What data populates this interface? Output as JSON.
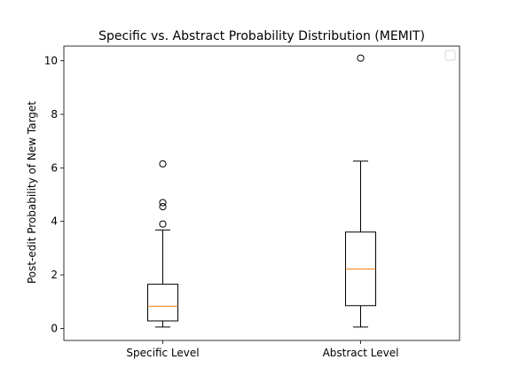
{
  "chart_data": {
    "type": "box",
    "title": "Specific vs. Abstract Probability Distribution (MEMIT)",
    "xlabel": "",
    "ylabel": "Post-edit Probability of New Target",
    "categories": [
      "Specific Level",
      "Abstract Level"
    ],
    "ylim": [
      -0.45,
      10.55
    ],
    "yticks": [
      0,
      2,
      4,
      6,
      8,
      10
    ],
    "grid": false,
    "legend": "top-right (empty)",
    "boxes": [
      {
        "category": "Specific Level",
        "whisker_low": 0.05,
        "q1": 0.28,
        "median": 0.83,
        "q3": 1.65,
        "whisker_high": 3.68,
        "outliers": [
          3.9,
          4.55,
          4.7,
          6.15
        ]
      },
      {
        "category": "Abstract Level",
        "whisker_low": 0.05,
        "q1": 0.85,
        "median": 2.22,
        "q3": 3.6,
        "whisker_high": 6.25,
        "outliers": [
          10.1
        ]
      }
    ],
    "colors": {
      "box": "#000000",
      "median": "#ff7f0e",
      "outlier": "#000000"
    }
  }
}
